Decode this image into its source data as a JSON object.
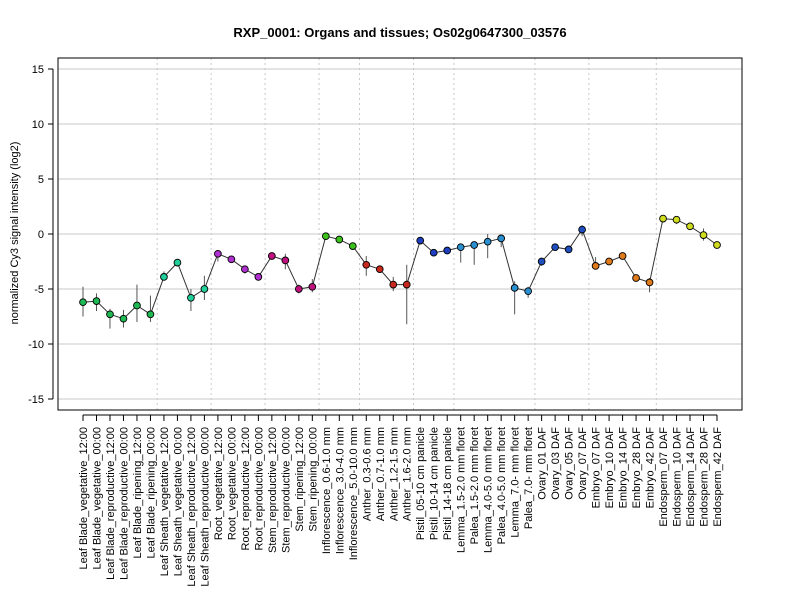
{
  "chart_data": {
    "type": "line",
    "title": "RXP_0001: Organs and tissues; Os02g0647300_03576",
    "xlabel": "",
    "ylabel": "normalized Cy3 signal intensity (log2)",
    "ylim": [
      -16,
      16
    ],
    "yticks": [
      -15,
      -10,
      -5,
      0,
      5,
      10,
      15
    ],
    "grid": "horizontal solid at y ticks, vertical dotted between tissue groups",
    "categories": [
      "Leaf Blade_vegetative_12:00",
      "Leaf Blade_vegetative_00:00",
      "Leaf Blade_reproductive_12:00",
      "Leaf Blade_reproductive_00:00",
      "Leaf Blade_ripening_12:00",
      "Leaf Blade_ripening_00:00",
      "Leaf Sheath_vegetative_12:00",
      "Leaf Sheath_vegetative_00:00",
      "Leaf Sheath_reproductive_12:00",
      "Leaf Sheath_reproductive_00:00",
      "Root_vegetative_12:00",
      "Root_vegetative_00:00",
      "Root_reproductive_12:00",
      "Root_reproductive_00:00",
      "Stem_reproductive_12:00",
      "Stem_reproductive_00:00",
      "Stem_ripening_12:00",
      "Stem_ripening_00:00",
      "Inflorescence_0.6-1.0 mm",
      "Inflorescence_3.0-4.0 mm",
      "Inflorescence_5.0-10.0 mm",
      "Anther_0.3-0.6 mm",
      "Anther_0.7-1.0 mm",
      "Anther_1.2-1.5 mm",
      "Anther_1.6-2.0 mm",
      "Pistil_05-10 cm panicle",
      "Pistil_10-14 cm panicle",
      "Pistil_14-18 cm panicle",
      "Lemma_1.5-2.0 mm floret",
      "Palea_1.5-2.0 mm floret",
      "Lemma_4.0-5.0 mm floret",
      "Palea_4.0-5.0 mm floret",
      "Lemma_7.0- mm floret",
      "Palea_7.0- mm floret",
      "Ovary_01 DAF",
      "Ovary_03 DAF",
      "Ovary_05 DAF",
      "Ovary_07 DAF",
      "Embryo_07 DAF",
      "Embryo_10 DAF",
      "Embryo_14 DAF",
      "Embryo_28 DAF",
      "Embryo_42 DAF",
      "Endosperm_07 DAF",
      "Endosperm_10 DAF",
      "Endosperm_14 DAF",
      "Endosperm_28 DAF",
      "Endosperm_42 DAF"
    ],
    "values": [
      -6.2,
      -6.1,
      -7.3,
      -7.7,
      -6.5,
      -7.3,
      -3.9,
      -2.6,
      -5.8,
      -5.0,
      -1.8,
      -2.3,
      -3.2,
      -3.9,
      -2.0,
      -2.4,
      -5.0,
      -4.8,
      -0.2,
      -0.5,
      -1.1,
      -2.8,
      -3.2,
      -4.6,
      -4.6,
      -0.6,
      -1.7,
      -1.5,
      -1.2,
      -1.0,
      -0.7,
      -0.4,
      -4.9,
      -5.2,
      -2.5,
      -1.2,
      -1.4,
      0.4,
      -2.9,
      -2.5,
      -2.0,
      -4.0,
      -4.4,
      1.4,
      1.3,
      0.7,
      -0.1,
      -1.0
    ],
    "error_low": [
      -7.5,
      -7.0,
      -8.6,
      -8.5,
      -8.0,
      -8.0,
      -4.2,
      -2.8,
      -7.0,
      -6.0,
      -2.5,
      -2.6,
      -3.6,
      -4.2,
      -2.3,
      -3.2,
      -5.4,
      -5.3,
      -0.4,
      -0.8,
      -1.3,
      -3.8,
      -3.5,
      -5.2,
      -8.2,
      -0.7,
      -2.0,
      -1.8,
      -2.6,
      -2.8,
      -2.2,
      -1.2,
      -7.3,
      -5.8,
      -2.9,
      -1.4,
      -1.6,
      -0.2,
      -3.2,
      -2.8,
      -2.3,
      -4.2,
      -5.3,
      1.2,
      0.9,
      0.5,
      -0.6,
      -1.3
    ],
    "error_high": [
      -4.8,
      -5.4,
      -6.8,
      -6.9,
      -4.6,
      -5.6,
      -3.4,
      -2.4,
      -5.0,
      -3.8,
      -1.6,
      -2.1,
      -2.9,
      -3.6,
      -1.7,
      -1.8,
      -4.6,
      -4.1,
      0.0,
      -0.3,
      -0.9,
      -2.0,
      -2.9,
      -3.9,
      -2.8,
      -0.4,
      -1.4,
      -1.3,
      -0.9,
      -0.8,
      0.0,
      -0.1,
      -4.3,
      -4.8,
      -2.2,
      -1.0,
      -1.2,
      0.8,
      -2.1,
      -2.2,
      -1.7,
      -3.8,
      -4.0,
      1.6,
      1.6,
      0.9,
      0.5,
      -0.7
    ],
    "point_colors": [
      "#1fb954",
      "#1fb954",
      "#1fb954",
      "#1fb954",
      "#1fb954",
      "#1fb954",
      "#20cf9a",
      "#20cf9a",
      "#20cf9a",
      "#20cf9a",
      "#b02fcf",
      "#b02fcf",
      "#b02fcf",
      "#b02fcf",
      "#c0127f",
      "#c0127f",
      "#c0127f",
      "#c0127f",
      "#3cc21a",
      "#3cc21a",
      "#3cc21a",
      "#c8281e",
      "#c8281e",
      "#c8281e",
      "#c8281e",
      "#1e3fc0",
      "#1e3fc0",
      "#1e3fc0",
      "#2a8fcf",
      "#2a8fcf",
      "#2a8fcf",
      "#2a8fcf",
      "#2a8fcf",
      "#2a8fcf",
      "#1f4fbf",
      "#1f4fbf",
      "#1f4fbf",
      "#1f4fbf",
      "#e07a1a",
      "#e07a1a",
      "#e07a1a",
      "#e07a1a",
      "#e07a1a",
      "#cfdc1f",
      "#cfdc1f",
      "#cfdc1f",
      "#cfdc1f",
      "#cfdc1f"
    ],
    "group_separators_after_index": [
      5,
      9,
      13,
      17,
      20,
      24,
      27,
      33,
      37,
      42
    ],
    "line_color": "#333333",
    "grid_color": "#c8c8c8"
  }
}
